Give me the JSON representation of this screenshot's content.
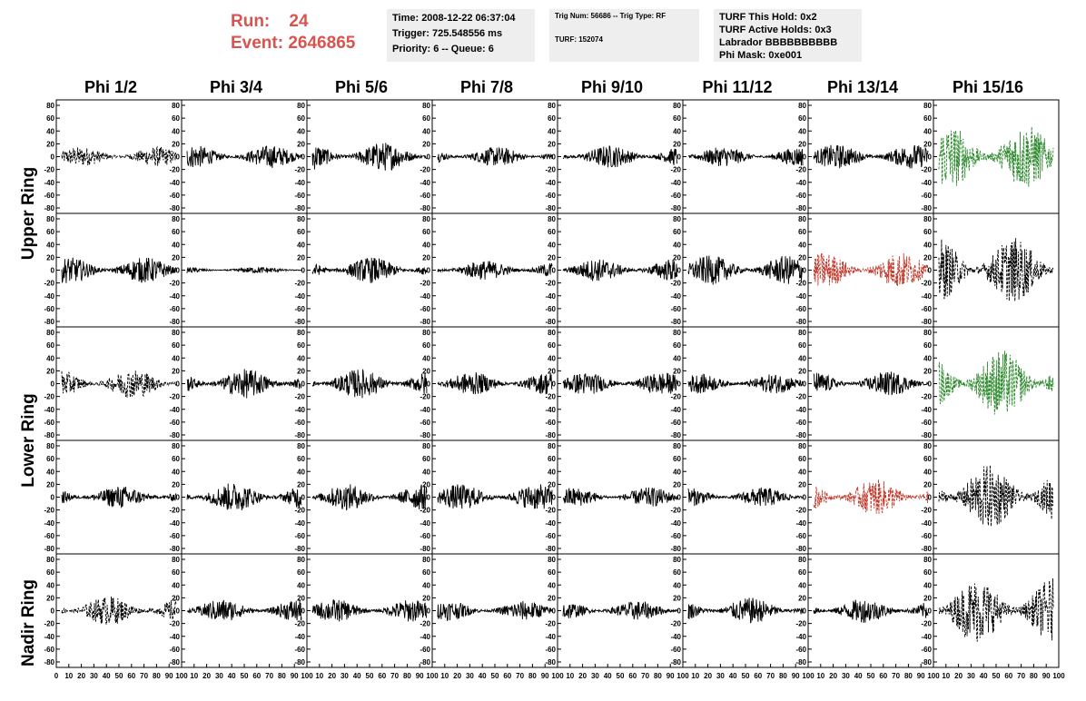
{
  "header": {
    "run_label": "Run:",
    "run_value": "24",
    "event_label": "Event:",
    "event_value": "2646865",
    "run_color": "#d9534f"
  },
  "info_time": {
    "time": "Time: 2008-12-22 06:37:04",
    "trigger": "Trigger: 725.548556 ms",
    "priority": "Priority: 6 -- Queue: 6"
  },
  "info_trig": {
    "trig": "Trig Num: 56686 -- Trig Type: RF",
    "turf": "TURF: 152074"
  },
  "info_turf": {
    "hold": "TURF This Hold: 0x2",
    "active": "TURF Active Holds: 0x3",
    "labrador": "Labrador BBBBBBBBBB",
    "mask": "Phi Mask: 0xe001"
  },
  "columns": [
    "Phi 1/2",
    "Phi 3/4",
    "Phi 5/6",
    "Phi 7/8",
    "Phi 9/10",
    "Phi 11/12",
    "Phi 13/14",
    "Phi 15/16"
  ],
  "rings": [
    "Upper Ring",
    "Lower Ring",
    "Nadir Ring"
  ],
  "y_ticks": [
    "80",
    "60",
    "40",
    "20",
    "0",
    "-20",
    "-40",
    "-60",
    "-80"
  ],
  "x_ticks": [
    "0",
    "10",
    "20",
    "30",
    "40",
    "50",
    "60",
    "70",
    "80",
    "90",
    "100"
  ],
  "trace_colors": {
    "normal": "#000000",
    "green": "#2e8b2e",
    "red": "#c0392b"
  },
  "trace_styles": [
    [
      "dash",
      "solid",
      "solid",
      "solid",
      "solid",
      "solid",
      "solid",
      "green"
    ],
    [
      "solid",
      "flat",
      "solid",
      "solid",
      "solid",
      "solid",
      "red",
      "dash"
    ],
    [
      "dash",
      "solid",
      "solid",
      "solid",
      "solid",
      "solid",
      "solid",
      "green"
    ],
    [
      "solid",
      "solid",
      "solid",
      "solid",
      "solid",
      "solid",
      "red",
      "dash"
    ],
    [
      "dash",
      "solid",
      "solid",
      "solid",
      "solid",
      "solid",
      "solid",
      "dash"
    ]
  ],
  "trace_amplitudes": [
    [
      12,
      14,
      18,
      12,
      14,
      12,
      15,
      40
    ],
    [
      16,
      3,
      16,
      12,
      14,
      18,
      22,
      40
    ],
    [
      18,
      18,
      18,
      14,
      14,
      12,
      15,
      42
    ],
    [
      14,
      18,
      16,
      16,
      12,
      12,
      22,
      40
    ],
    [
      18,
      14,
      14,
      12,
      12,
      16,
      15,
      40
    ]
  ]
}
